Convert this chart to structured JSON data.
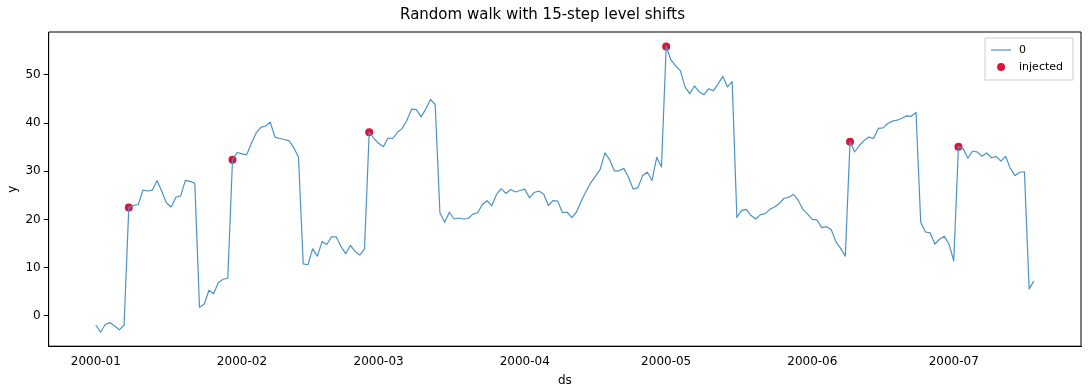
{
  "chart_data": {
    "type": "line",
    "title": "Random walk with 15-step level shifts",
    "xlabel": "ds",
    "ylabel": "y",
    "x": [
      "2000-01-01",
      "2000-01-02",
      "2000-01-03",
      "2000-01-04",
      "2000-01-05",
      "2000-01-06",
      "2000-01-07",
      "2000-01-08",
      "2000-01-09",
      "2000-01-10",
      "2000-01-11",
      "2000-01-12",
      "2000-01-13",
      "2000-01-14",
      "2000-01-15",
      "2000-01-16",
      "2000-01-17",
      "2000-01-18",
      "2000-01-19",
      "2000-01-20",
      "2000-01-21",
      "2000-01-22",
      "2000-01-23",
      "2000-01-24",
      "2000-01-25",
      "2000-01-26",
      "2000-01-27",
      "2000-01-28",
      "2000-01-29",
      "2000-01-30",
      "2000-01-31",
      "2000-02-01",
      "2000-02-02",
      "2000-02-03",
      "2000-02-04",
      "2000-02-05",
      "2000-02-06",
      "2000-02-07",
      "2000-02-08",
      "2000-02-09",
      "2000-02-10",
      "2000-02-11",
      "2000-02-12",
      "2000-02-13",
      "2000-02-14",
      "2000-02-15",
      "2000-02-16",
      "2000-02-17",
      "2000-02-18",
      "2000-02-19",
      "2000-02-20",
      "2000-02-21",
      "2000-02-22",
      "2000-02-23",
      "2000-02-24",
      "2000-02-25",
      "2000-02-26",
      "2000-02-27",
      "2000-02-28",
      "2000-02-29",
      "2000-03-01",
      "2000-03-02",
      "2000-03-03",
      "2000-03-04",
      "2000-03-05",
      "2000-03-06",
      "2000-03-07",
      "2000-03-08",
      "2000-03-09",
      "2000-03-10",
      "2000-03-11",
      "2000-03-12",
      "2000-03-13",
      "2000-03-14",
      "2000-03-15",
      "2000-03-16",
      "2000-03-17",
      "2000-03-18",
      "2000-03-19",
      "2000-03-20",
      "2000-03-21",
      "2000-03-22",
      "2000-03-23",
      "2000-03-24",
      "2000-03-25",
      "2000-03-26",
      "2000-03-27",
      "2000-03-28",
      "2000-03-29",
      "2000-03-30",
      "2000-03-31",
      "2000-04-01",
      "2000-04-02",
      "2000-04-03",
      "2000-04-04",
      "2000-04-05",
      "2000-04-06",
      "2000-04-07",
      "2000-04-08",
      "2000-04-09",
      "2000-04-10",
      "2000-04-11",
      "2000-04-12",
      "2000-04-13",
      "2000-04-14",
      "2000-04-15",
      "2000-04-16",
      "2000-04-17",
      "2000-04-18",
      "2000-04-19",
      "2000-04-20",
      "2000-04-21",
      "2000-04-22",
      "2000-04-23",
      "2000-04-24",
      "2000-04-25",
      "2000-04-26",
      "2000-04-27",
      "2000-04-28",
      "2000-04-29",
      "2000-04-30",
      "2000-05-01",
      "2000-05-02",
      "2000-05-03",
      "2000-05-04",
      "2000-05-05",
      "2000-05-06",
      "2000-05-07",
      "2000-05-08",
      "2000-05-09",
      "2000-05-10",
      "2000-05-11",
      "2000-05-12",
      "2000-05-13",
      "2000-05-14",
      "2000-05-15",
      "2000-05-16",
      "2000-05-17",
      "2000-05-18",
      "2000-05-19",
      "2000-05-20",
      "2000-05-21",
      "2000-05-22",
      "2000-05-23",
      "2000-05-24",
      "2000-05-25",
      "2000-05-26",
      "2000-05-27",
      "2000-05-28",
      "2000-05-29",
      "2000-05-30",
      "2000-05-31",
      "2000-06-01",
      "2000-06-02",
      "2000-06-03",
      "2000-06-04",
      "2000-06-05",
      "2000-06-06",
      "2000-06-07",
      "2000-06-08",
      "2000-06-09",
      "2000-06-10",
      "2000-06-11",
      "2000-06-12",
      "2000-06-13",
      "2000-06-14",
      "2000-06-15",
      "2000-06-16",
      "2000-06-17",
      "2000-06-18",
      "2000-06-19",
      "2000-06-20",
      "2000-06-21",
      "2000-06-22",
      "2000-06-23",
      "2000-06-24",
      "2000-06-25",
      "2000-06-26",
      "2000-06-27",
      "2000-06-28",
      "2000-06-29",
      "2000-06-30",
      "2000-07-01",
      "2000-07-02",
      "2000-07-03",
      "2000-07-04",
      "2000-07-05",
      "2000-07-06",
      "2000-07-07",
      "2000-07-08",
      "2000-07-09",
      "2000-07-10",
      "2000-07-11",
      "2000-07-12",
      "2000-07-13",
      "2000-07-14",
      "2000-07-15",
      "2000-07-16",
      "2000-07-17",
      "2000-07-18"
    ],
    "series": [
      {
        "name": "0",
        "color": "#4a93c6",
        "marker": "none",
        "line_style": "solid",
        "values": [
          -1.9,
          -3.4,
          -1.8,
          -1.4,
          -2.1,
          -2.9,
          -1.9,
          22.5,
          22.9,
          23.1,
          26.1,
          25.9,
          26.1,
          28.1,
          25.8,
          23.4,
          22.6,
          24.6,
          24.9,
          28.1,
          27.9,
          27.5,
          1.8,
          2.4,
          5.3,
          4.6,
          6.9,
          7.6,
          7.8,
          32.4,
          33.9,
          33.6,
          33.4,
          35.8,
          37.9,
          39.1,
          39.4,
          40.2,
          37.1,
          36.8,
          36.6,
          36.3,
          34.9,
          32.9,
          10.8,
          10.6,
          13.9,
          12.4,
          15.4,
          14.8,
          16.4,
          16.4,
          14.4,
          12.9,
          14.6,
          13.4,
          12.6,
          13.9,
          38.1,
          36.8,
          35.8,
          35.1,
          36.9,
          36.8,
          38.1,
          38.9,
          40.6,
          42.9,
          42.8,
          41.3,
          42.9,
          44.9,
          43.8,
          21.4,
          19.4,
          21.5,
          20.1,
          20.3,
          20.1,
          20.2,
          21.1,
          21.4,
          23.1,
          23.9,
          22.8,
          25.2,
          26.4,
          25.4,
          26.2,
          25.7,
          26.0,
          26.3,
          24.5,
          25.6,
          25.9,
          25.3,
          22.9,
          23.9,
          23.8,
          21.4,
          21.5,
          20.4,
          21.6,
          23.9,
          25.8,
          27.6,
          29.0,
          30.4,
          33.8,
          32.4,
          30.1,
          30.1,
          30.6,
          28.8,
          26.3,
          26.6,
          29.1,
          29.8,
          28.1,
          32.9,
          30.9,
          55.9,
          53.1,
          51.9,
          50.9,
          47.5,
          46.1,
          47.7,
          46.5,
          45.9,
          47.1,
          46.7,
          48.1,
          49.7,
          47.5,
          48.6,
          20.4,
          21.9,
          22.1,
          20.8,
          20.1,
          21.0,
          21.2,
          22.1,
          22.6,
          23.3,
          24.4,
          24.6,
          25.2,
          24.0,
          22.1,
          21.1,
          20.0,
          19.9,
          18.3,
          18.5,
          17.9,
          15.4,
          14.0,
          12.4,
          36.1,
          34.0,
          35.4,
          36.4,
          37.1,
          36.8,
          38.9,
          39.0,
          39.9,
          40.4,
          40.6,
          41.0,
          41.5,
          41.4,
          42.2,
          19.4,
          17.4,
          17.2,
          14.9,
          15.9,
          16.5,
          14.9,
          11.4,
          35.1,
          34.7,
          32.7,
          34.2,
          34.0,
          33.1,
          33.8,
          32.8,
          33.1,
          32.1,
          33.1,
          30.6,
          29.1,
          29.8,
          29.9,
          5.6,
          7.2
        ]
      },
      {
        "name": "injected",
        "type": "scatter",
        "color": "#dc143c",
        "marker": "circle",
        "x": [
          "2000-01-08",
          "2000-01-30",
          "2000-02-28",
          "2000-05-01",
          "2000-06-09",
          "2000-07-02"
        ],
        "values": [
          22.5,
          32.4,
          38.1,
          55.9,
          36.1,
          35.1
        ]
      }
    ],
    "xlim": [
      "1999-12-22",
      "2000-07-28"
    ],
    "xticks": [
      "2000-01",
      "2000-02",
      "2000-03",
      "2000-04",
      "2000-05",
      "2000-06",
      "2000-07"
    ],
    "ylim": [
      -6.3,
      58.9
    ],
    "yticks": [
      0,
      10,
      20,
      30,
      40,
      50
    ],
    "grid": false,
    "legend": "top right"
  }
}
